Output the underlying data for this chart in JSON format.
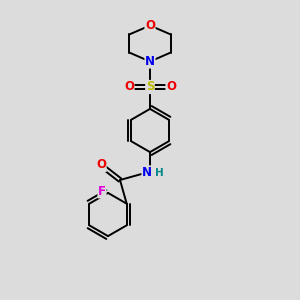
{
  "bg_color": "#dcdcdc",
  "atom_colors": {
    "C": "#000000",
    "N": "#0000ee",
    "O": "#ee0000",
    "S": "#bbbb00",
    "F": "#dd00dd",
    "H": "#008888"
  },
  "bond_color": "#000000",
  "lw": 1.4,
  "fontsize": 8.5
}
